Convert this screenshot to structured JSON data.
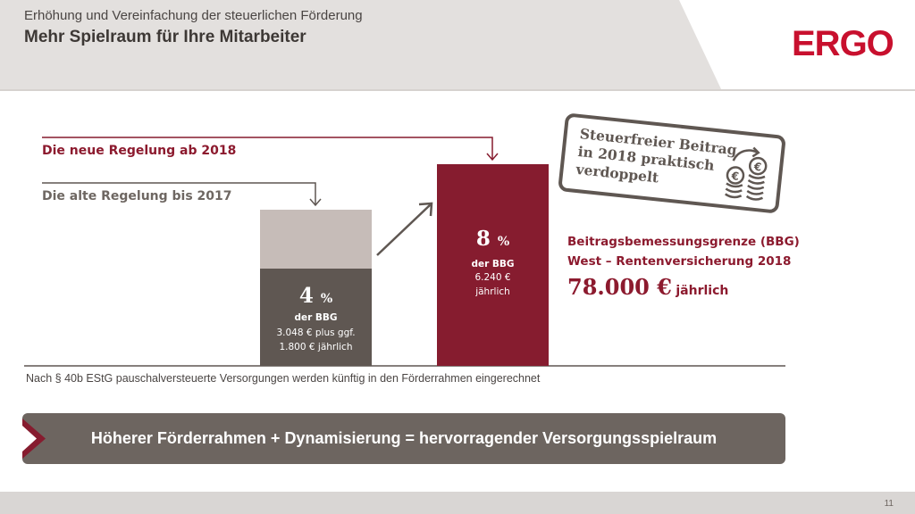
{
  "header": {
    "subtitle": "Erhöhung und Vereinfachung der steuerlichen Förderung",
    "title": "Mehr Spielraum für Ihre Mitarbeiter",
    "logo": "ERGO"
  },
  "labels": {
    "new_rule": "Die neue Regelung ab 2018",
    "old_rule": "Die alte Regelung bis 2017"
  },
  "old_bar": {
    "percent": "4",
    "percent_sign": "%",
    "of": "der BBG",
    "amount_line1": "3.048 € plus ggf.",
    "amount_line2": "1.800 € jährlich"
  },
  "new_bar": {
    "percent": "8",
    "percent_sign": "%",
    "of": "der BBG",
    "amount_line1": "6.240 €",
    "amount_line2": "jährlich"
  },
  "bbg": {
    "line1": "Beitragsbemessungsgrenze (BBG)",
    "line2": "West – Rentenversicherung 2018",
    "amount": "78.000 €",
    "amount_suffix": "jährlich"
  },
  "stamp": {
    "line1": "Steuerfreier Beitrag",
    "line2": "in 2018 praktisch",
    "line3": "verdoppelt"
  },
  "footnote": "Nach § 40b EStG pauschalversteuerte Versorgungen werden künftig in den Förderrahmen eingerechnet",
  "banner": "Höherer Förderrahmen + Dynamisierung = hervorragender Versorgungsspielraum",
  "page_number": "11",
  "colors": {
    "brand_red": "#c8102e",
    "bordeaux": "#861c2f",
    "dark_grey": "#5f5752",
    "light_grey": "#c6bcb8"
  }
}
